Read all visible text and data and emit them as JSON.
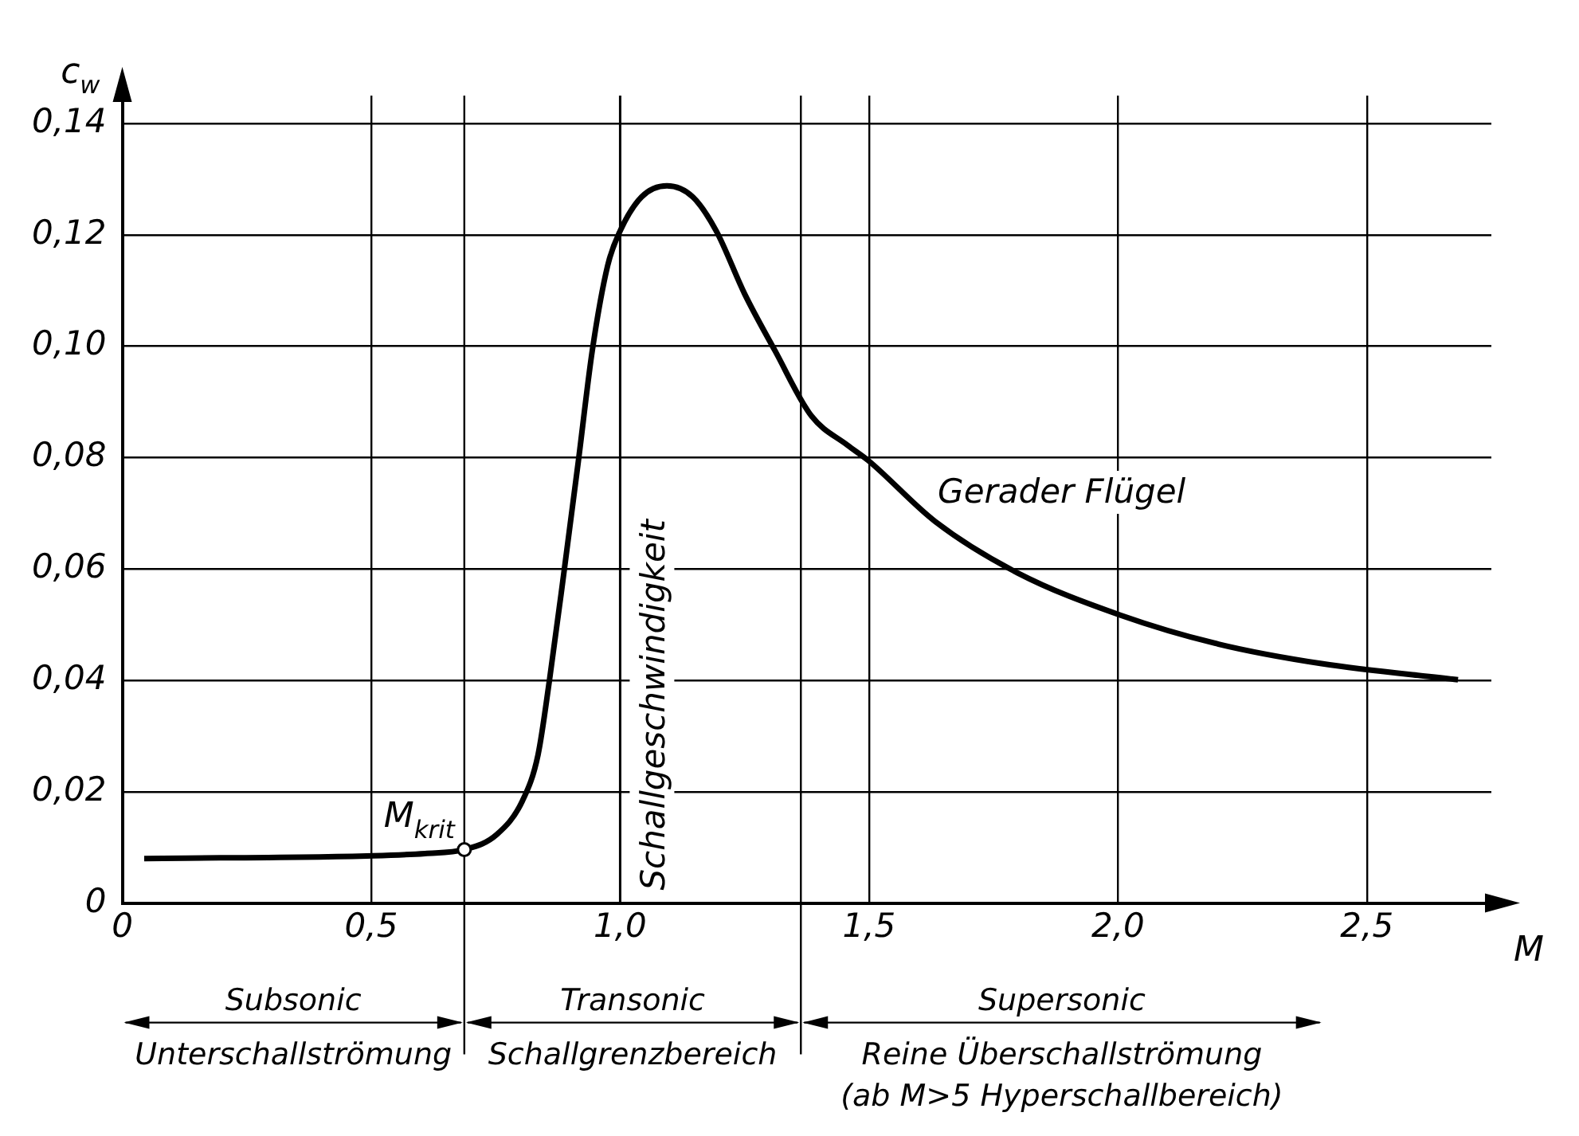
{
  "chart_data": {
    "type": "line",
    "xlabel": "M",
    "ylabel": "c$_{w}$",
    "xlim": [
      0,
      2.75
    ],
    "ylim": [
      0,
      0.145
    ],
    "xticks": [
      {
        "value": 0,
        "label": "0"
      },
      {
        "value": 0.5,
        "label": "0,5"
      },
      {
        "value": 1,
        "label": "1,0"
      },
      {
        "value": 1.5,
        "label": "1,5"
      },
      {
        "value": 2,
        "label": "2,0"
      },
      {
        "value": 2.5,
        "label": "2,5"
      }
    ],
    "yticks": [
      {
        "value": 0,
        "label": "0"
      },
      {
        "value": 0.02,
        "label": "0,02"
      },
      {
        "value": 0.04,
        "label": "0,04"
      },
      {
        "value": 0.06,
        "label": "0,06"
      },
      {
        "value": 0.08,
        "label": "0,08"
      },
      {
        "value": 0.1,
        "label": "0,10"
      },
      {
        "value": 0.12,
        "label": "0,12"
      },
      {
        "value": 0.14,
        "label": "0,14"
      }
    ],
    "grid": true,
    "legend": false,
    "marker": "none",
    "line_style": "solid",
    "series": [
      {
        "name": "Gerader Flügel",
        "color": "#000000",
        "x": [
          0.044,
          0.504,
          0.608,
          0.687,
          0.752,
          0.804,
          0.835,
          0.858,
          0.887,
          0.916,
          0.944,
          0.975,
          1.0,
          1.043,
          1.094,
          1.146,
          1.193,
          1.25,
          1.311,
          1.384,
          1.457,
          1.498,
          1.633,
          1.798,
          2.005,
          2.202,
          2.409,
          2.683
        ],
        "values": [
          0.008,
          0.0085,
          0.0089,
          0.0096,
          0.0123,
          0.0184,
          0.0266,
          0.04,
          0.0593,
          0.0793,
          0.0992,
          0.1145,
          0.1207,
          0.1268,
          0.1288,
          0.1268,
          0.1207,
          0.1094,
          0.0992,
          0.0875,
          0.0822,
          0.0795,
          0.0685,
          0.0593,
          0.0517,
          0.0465,
          0.043,
          0.0401
        ]
      }
    ],
    "ref_lines": [
      {
        "axis": "x",
        "value": 1,
        "label": "Schallgeschwindigkeit"
      },
      {
        "axis": "x",
        "value": 0.687,
        "label": null
      },
      {
        "axis": "x",
        "value": 1.363,
        "label": null
      }
    ],
    "annotations": [
      {
        "text": "M$_{krit}$",
        "x": 0.687,
        "y": 0.0096
      },
      "Subsonic\nUnterschallströmung",
      "Transonic\nSchallgrenzbereich",
      "Supersonic\nReine Überschallströmung\n(ab M>5 Hyperschallbereich)"
    ]
  }
}
